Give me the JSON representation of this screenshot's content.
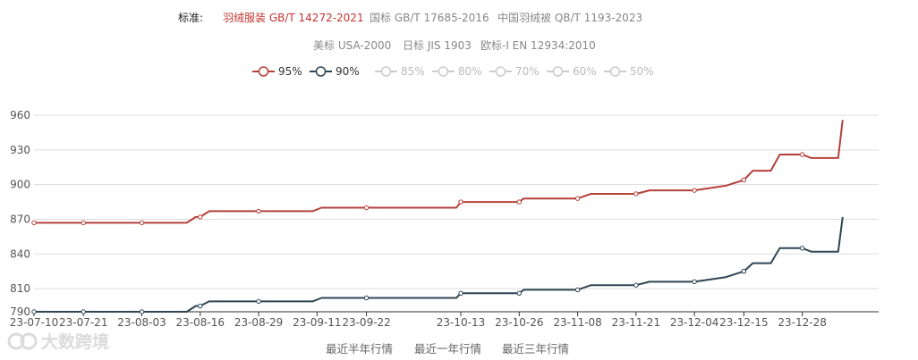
{
  "standards": {
    "label": "标准:",
    "row1": [
      {
        "text": "羽绒服装 GB/T 14272-2021",
        "active": true
      },
      {
        "text": "国标 GB/T 17685-2016",
        "active": false
      },
      {
        "text": "中国羽绒被 QB/T 1193-2023",
        "active": false
      }
    ],
    "row2": [
      {
        "text": "美标 USA-2000",
        "active": false
      },
      {
        "text": "日标 JIS 1903",
        "active": false
      },
      {
        "text": "欧标-I EN 12934:2010",
        "active": false
      }
    ]
  },
  "legend": [
    {
      "name": "95%",
      "color": "#b5403b",
      "active": true
    },
    {
      "name": "90%",
      "color": "#2f4554",
      "active": true
    },
    {
      "name": "85%",
      "color": "#cccccc",
      "active": false
    },
    {
      "name": "80%",
      "color": "#cccccc",
      "active": false
    },
    {
      "name": "70%",
      "color": "#cccccc",
      "active": false
    },
    {
      "name": "60%",
      "color": "#cccccc",
      "active": false
    },
    {
      "name": "50%",
      "color": "#cccccc",
      "active": false
    }
  ],
  "ranges": {
    "half_year": "最近半年行情",
    "one_year": "最近一年行情",
    "three_year": "最近三年行情"
  },
  "watermark": "大数跨境",
  "chart_data": {
    "type": "line",
    "step": true,
    "xlim": [
      "2023-07-10",
      "2024-01-14"
    ],
    "ylim": [
      790,
      960
    ],
    "yticks": [
      790,
      810,
      840,
      870,
      900,
      930,
      960
    ],
    "xticks": [
      "23-07-10",
      "23-07-21",
      "23-08-03",
      "23-08-16",
      "23-08-29",
      "23-09-11",
      "23-09-22",
      "23-10-13",
      "23-10-26",
      "23-11-08",
      "23-11-21",
      "23-12-04",
      "23-12-15",
      "23-12-28"
    ],
    "grid": true,
    "series": [
      {
        "name": "95%",
        "color": "#b5403b",
        "points": [
          [
            "2023-07-10",
            867
          ],
          [
            "2023-07-21",
            867
          ],
          [
            "2023-08-03",
            867
          ],
          [
            "2023-08-13",
            867
          ],
          [
            "2023-08-15",
            872
          ],
          [
            "2023-08-16",
            872
          ],
          [
            "2023-08-18",
            877
          ],
          [
            "2023-08-29",
            877
          ],
          [
            "2023-09-10",
            877
          ],
          [
            "2023-09-12",
            880
          ],
          [
            "2023-09-22",
            880
          ],
          [
            "2023-10-12",
            880
          ],
          [
            "2023-10-13",
            885
          ],
          [
            "2023-10-26",
            885
          ],
          [
            "2023-10-27",
            888
          ],
          [
            "2023-11-08",
            888
          ],
          [
            "2023-11-11",
            892
          ],
          [
            "2023-11-21",
            892
          ],
          [
            "2023-11-24",
            895
          ],
          [
            "2023-12-04",
            895
          ],
          [
            "2023-12-11",
            899
          ],
          [
            "2023-12-15",
            904
          ],
          [
            "2023-12-17",
            912
          ],
          [
            "2023-12-21",
            912
          ],
          [
            "2023-12-23",
            926
          ],
          [
            "2023-12-28",
            926
          ],
          [
            "2023-12-30",
            923
          ],
          [
            "2024-01-05",
            923
          ],
          [
            "2024-01-06",
            956
          ]
        ]
      },
      {
        "name": "90%",
        "color": "#2f4554",
        "points": [
          [
            "2023-07-10",
            790
          ],
          [
            "2023-07-21",
            790
          ],
          [
            "2023-08-03",
            790
          ],
          [
            "2023-08-13",
            790
          ],
          [
            "2023-08-15",
            795
          ],
          [
            "2023-08-16",
            795
          ],
          [
            "2023-08-18",
            799
          ],
          [
            "2023-08-29",
            799
          ],
          [
            "2023-09-10",
            799
          ],
          [
            "2023-09-12",
            802
          ],
          [
            "2023-09-22",
            802
          ],
          [
            "2023-10-12",
            802
          ],
          [
            "2023-10-13",
            806
          ],
          [
            "2023-10-26",
            806
          ],
          [
            "2023-10-27",
            809
          ],
          [
            "2023-11-08",
            809
          ],
          [
            "2023-11-11",
            813
          ],
          [
            "2023-11-21",
            813
          ],
          [
            "2023-11-24",
            816
          ],
          [
            "2023-12-04",
            816
          ],
          [
            "2023-12-11",
            820
          ],
          [
            "2023-12-15",
            825
          ],
          [
            "2023-12-17",
            832
          ],
          [
            "2023-12-21",
            832
          ],
          [
            "2023-12-23",
            845
          ],
          [
            "2023-12-28",
            845
          ],
          [
            "2023-12-30",
            842
          ],
          [
            "2024-01-05",
            842
          ],
          [
            "2024-01-06",
            872
          ]
        ]
      }
    ],
    "markers": [
      "2023-07-10",
      "2023-07-21",
      "2023-08-03",
      "2023-08-16",
      "2023-08-29",
      "2023-09-11",
      "2023-09-22",
      "2023-10-13",
      "2023-10-26",
      "2023-11-08",
      "2023-11-21",
      "2023-12-04",
      "2023-12-15",
      "2023-12-28"
    ]
  }
}
